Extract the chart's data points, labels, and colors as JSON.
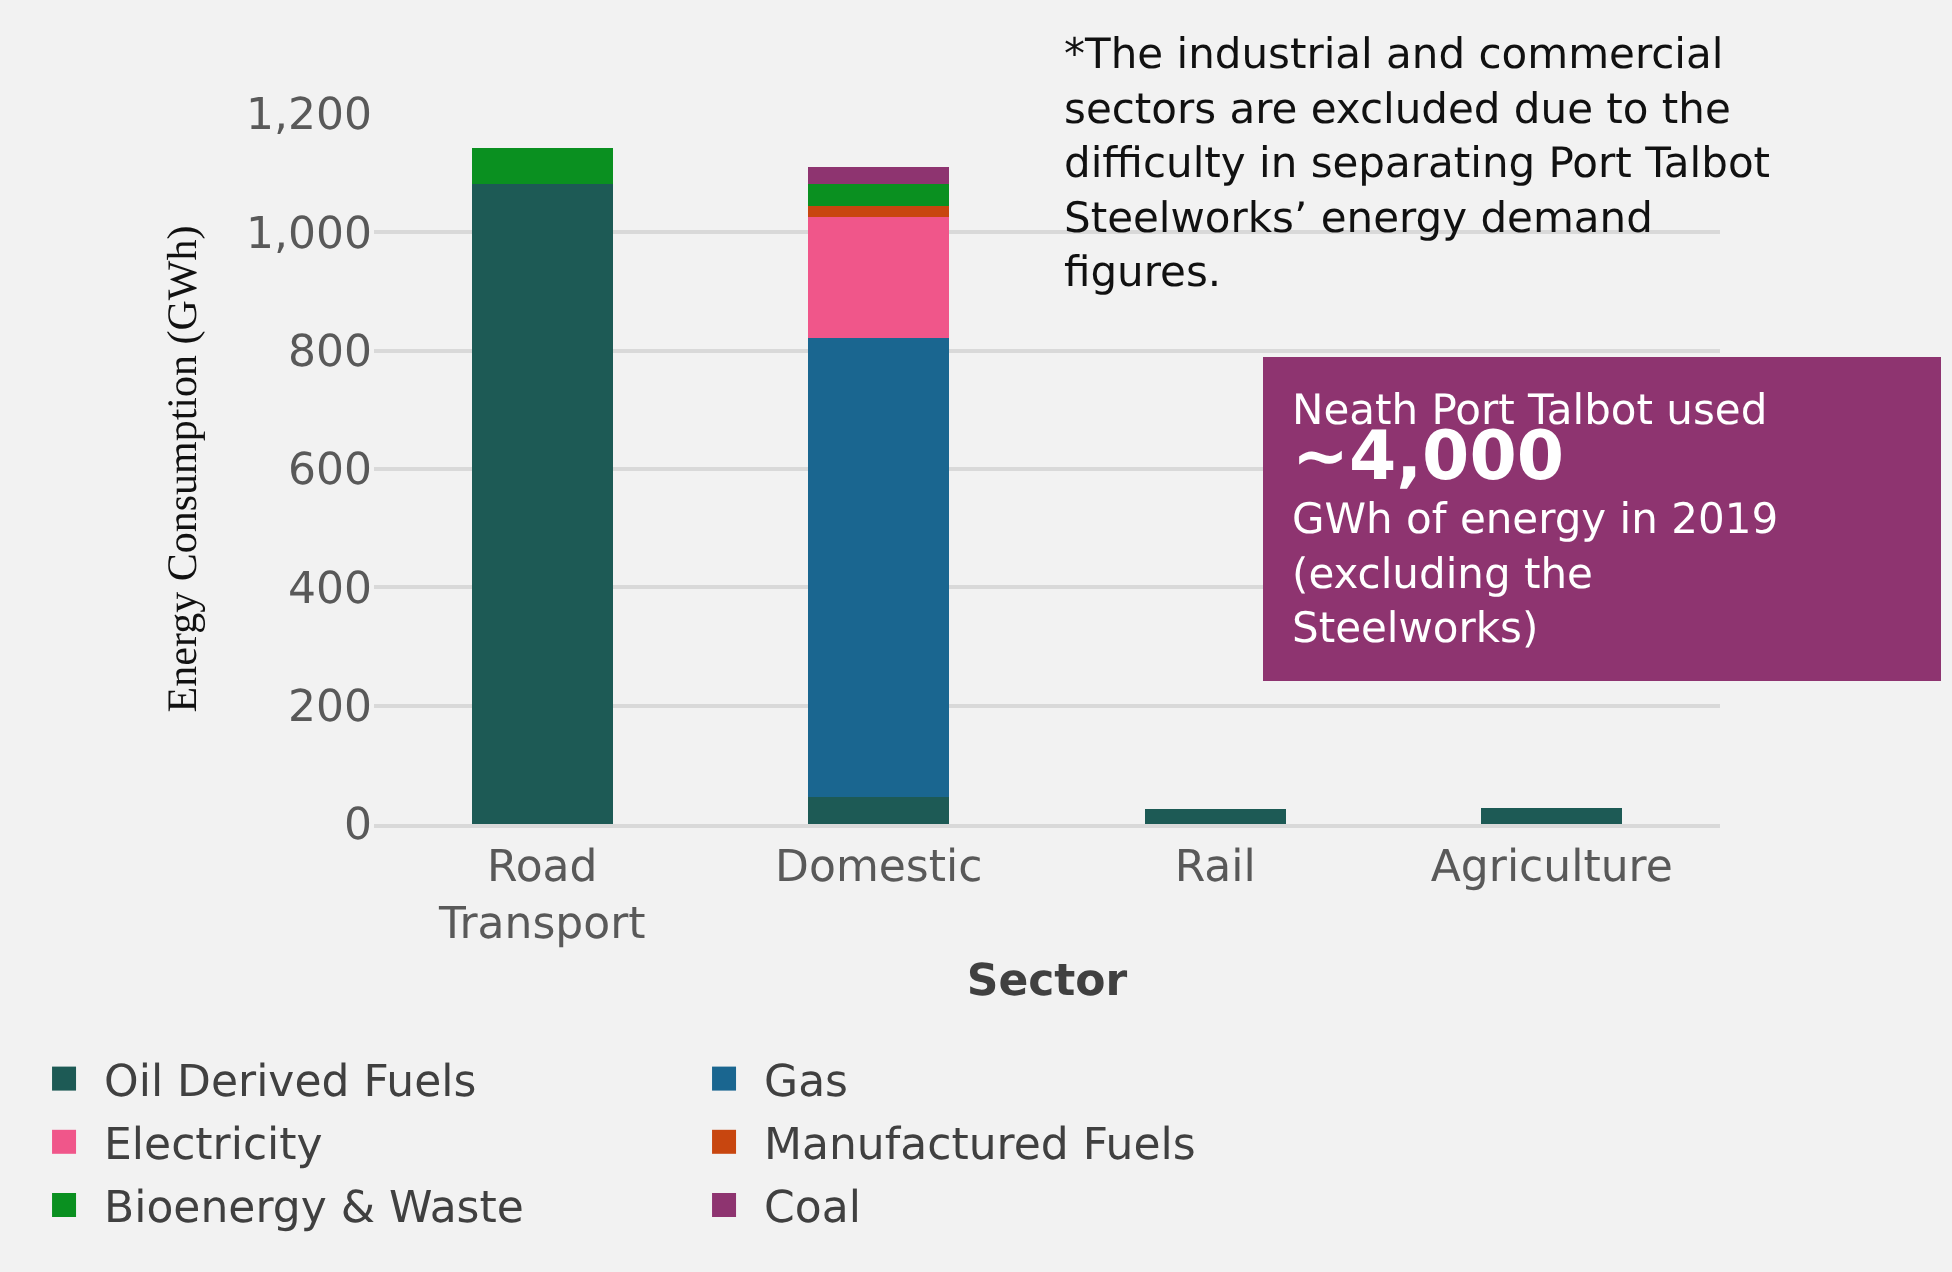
{
  "chart_data": {
    "type": "bar",
    "stacked": true,
    "xlabel": "Sector",
    "ylabel": "Energy Consumption (GWh)",
    "categories": [
      "Road\nTransport",
      "Domestic",
      "Rail",
      "Agriculture"
    ],
    "series": [
      {
        "name": "Oil Derived Fuels",
        "color": "#1d5a55",
        "values": [
          1082,
          45,
          25,
          27
        ]
      },
      {
        "name": "Gas",
        "color": "#1a6690",
        "values": [
          null,
          777,
          null,
          null
        ]
      },
      {
        "name": "Electricity",
        "color": "#f0568a",
        "values": [
          null,
          204,
          null,
          null
        ]
      },
      {
        "name": "Manufactured Fuels",
        "color": "#c8460f",
        "values": [
          null,
          18,
          null,
          null
        ]
      },
      {
        "name": "Bioenergy & Waste",
        "color": "#0a9020",
        "values": [
          60,
          38,
          null,
          null
        ]
      },
      {
        "name": "Coal",
        "color": "#8e3470",
        "values": [
          null,
          29,
          null,
          null
        ]
      }
    ],
    "ylim": [
      0,
      1200
    ],
    "yticks": [
      0,
      200,
      400,
      600,
      800,
      {
        "value": 1000,
        "label": "1,000"
      },
      {
        "value": 1200,
        "label": "1,200"
      }
    ],
    "grid": "y",
    "legend": "bottom",
    "annotations": [
      "*The industrial and commercial\nsectors are excluded due to the\ndifficulty in separating Port Talbot\nSteelworks’ energy demand\nfigures.",
      "Neath Port Talbot used\n~4,000\nGWh of energy in 2019\n(excluding the\nSteelworks)"
    ]
  }
}
